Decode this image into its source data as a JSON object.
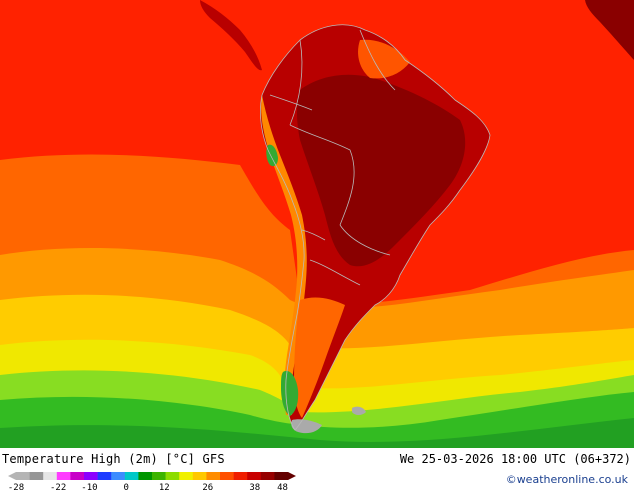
{
  "title": "Temperature High (2m) [°C] GFS",
  "run_info": "We 25-03-2026 18:00 UTC (06+372)",
  "credit": "©weatheronline.co.uk",
  "legend": {
    "ticks": [
      "-28",
      "-22",
      "-10",
      "0",
      "12",
      "26",
      "38",
      "48"
    ],
    "colors": [
      "#b4b4b4",
      "#969696",
      "#e6e6e6",
      "#ff3cff",
      "#c800c8",
      "#8c00ff",
      "#1e3cff",
      "#3c8cff",
      "#00c8c8",
      "#009600",
      "#3cb400",
      "#8cdc00",
      "#f0f000",
      "#ffc800",
      "#ff8c00",
      "#ff5000",
      "#f01e00",
      "#c80000",
      "#960000",
      "#640000"
    ]
  },
  "palette": {
    "sea_hot": "#ff2200",
    "sea_warm": "#ff6600",
    "sea_mild": "#ff9900",
    "sea_cool": "#ffcc00",
    "sea_yellow": "#f0e800",
    "sea_green_light": "#88dd22",
    "sea_green": "#33bb22",
    "land_hot": "#b80000",
    "land_very_hot": "#8a0000",
    "andes": "#ff8800",
    "highland_green": "#33aa33",
    "ice_grey": "#aaaaaa",
    "border": "#b9b9b9"
  }
}
